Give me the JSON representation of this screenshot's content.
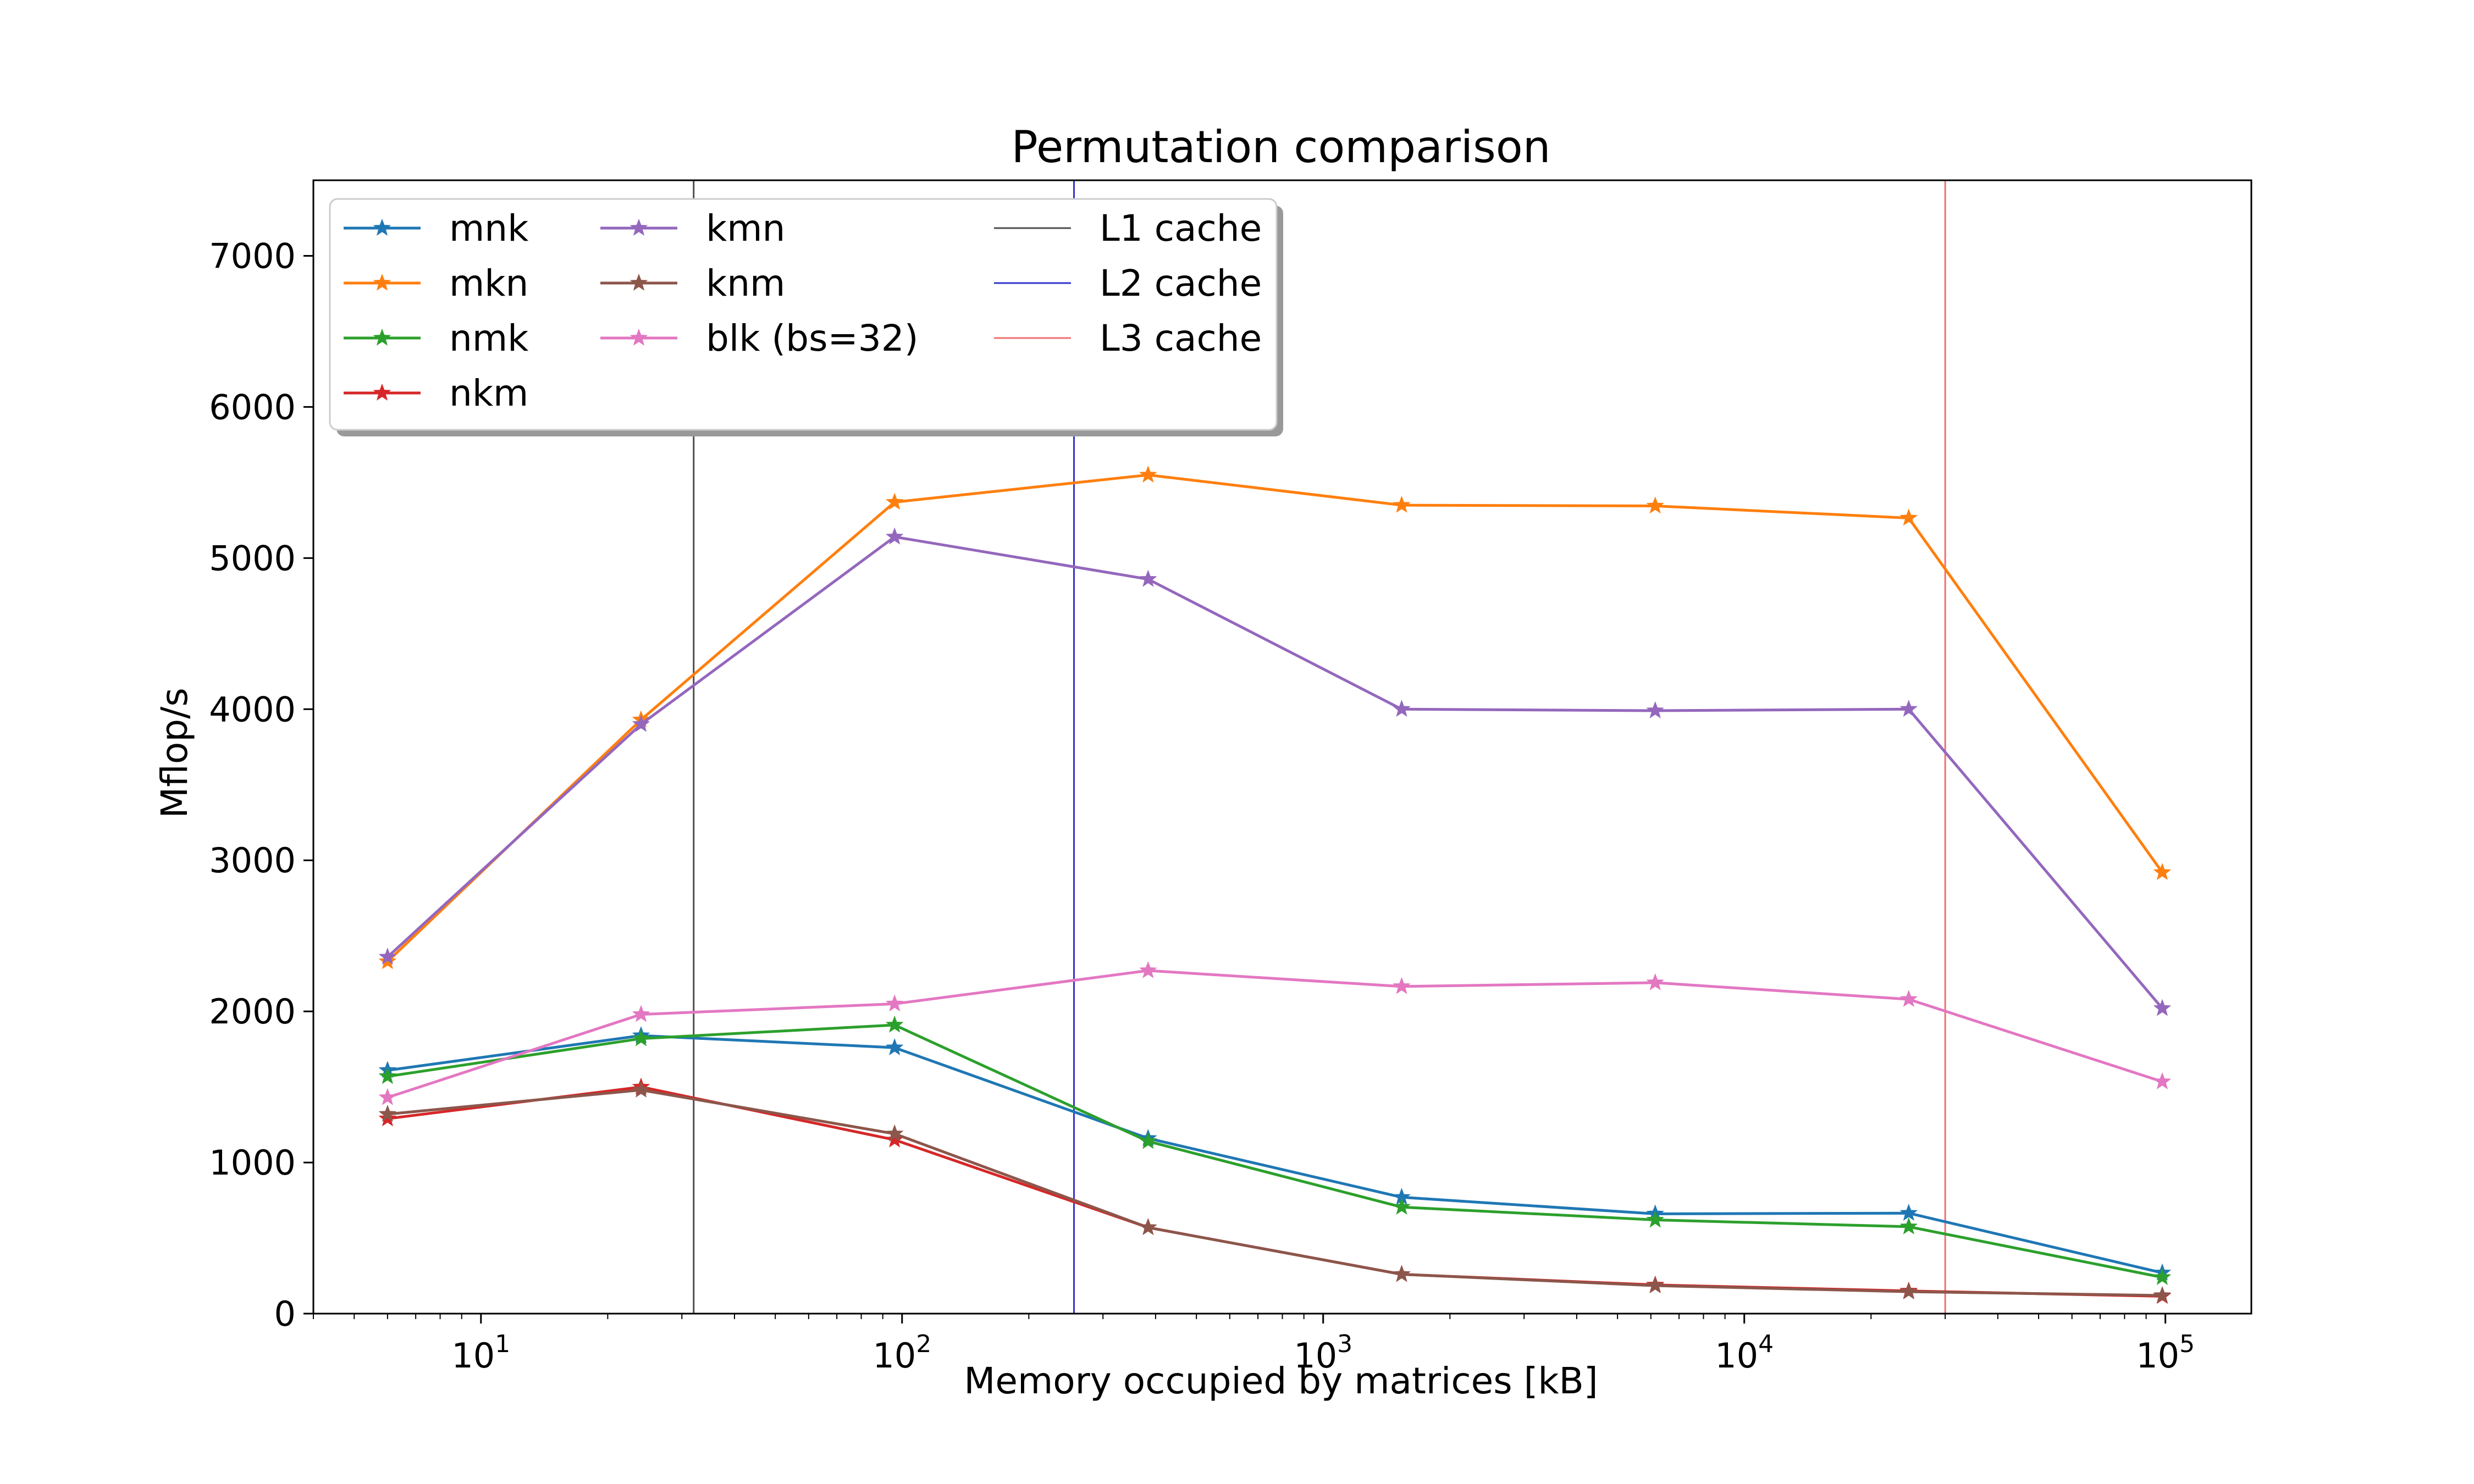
{
  "chart_data": {
    "type": "line",
    "title": "Permutation comparison",
    "xlabel": "Memory occupied by matrices [kB]",
    "ylabel": "Mflop/s",
    "xscale": "log",
    "xlim": [
      4,
      160000
    ],
    "ylim": [
      0,
      7500
    ],
    "grid": false,
    "legend_location": "top-left",
    "legend_columns": 3,
    "x_ticks": [
      {
        "value": 10,
        "base": "10",
        "exp": "1"
      },
      {
        "value": 100,
        "base": "10",
        "exp": "2"
      },
      {
        "value": 1000,
        "base": "10",
        "exp": "3"
      },
      {
        "value": 10000,
        "base": "10",
        "exp": "4"
      },
      {
        "value": 100000,
        "base": "10",
        "exp": "5"
      }
    ],
    "y_ticks": [
      {
        "value": 0,
        "label": "0"
      },
      {
        "value": 1000,
        "label": "1000"
      },
      {
        "value": 2000,
        "label": "2000"
      },
      {
        "value": 3000,
        "label": "3000"
      },
      {
        "value": 4000,
        "label": "4000"
      },
      {
        "value": 5000,
        "label": "5000"
      },
      {
        "value": 6000,
        "label": "6000"
      },
      {
        "value": 7000,
        "label": "7000"
      }
    ],
    "x": [
      6,
      24,
      96,
      384,
      1536,
      6144,
      24576,
      98304
    ],
    "series": [
      {
        "name": "mnk",
        "color": "#1f77b4",
        "values": [
          1610,
          1840,
          1760,
          1160,
          770,
          660,
          665,
          270
        ]
      },
      {
        "name": "mkn",
        "color": "#ff7f0e",
        "values": [
          2330,
          3930,
          5370,
          5550,
          5350,
          5345,
          5265,
          2920
        ]
      },
      {
        "name": "nmk",
        "color": "#2ca02c",
        "values": [
          1570,
          1820,
          1910,
          1140,
          705,
          620,
          575,
          240
        ]
      },
      {
        "name": "nkm",
        "color": "#d62728",
        "values": [
          1290,
          1500,
          1150,
          570,
          260,
          190,
          150,
          115
        ]
      },
      {
        "name": "kmn",
        "color": "#9467bd",
        "values": [
          2360,
          3900,
          5140,
          4860,
          4000,
          3990,
          4000,
          2020
        ]
      },
      {
        "name": "knm",
        "color": "#8c564b",
        "values": [
          1320,
          1480,
          1190,
          570,
          260,
          185,
          145,
          120
        ]
      },
      {
        "name": "blk (bs=32)",
        "color": "#e377c2",
        "values": [
          1430,
          1980,
          2050,
          2270,
          2165,
          2190,
          2080,
          1535
        ]
      }
    ],
    "vlines": [
      {
        "name": "L1 cache",
        "color": "#4d4d4d",
        "x": 32
      },
      {
        "name": "L2 cache",
        "color": "#3333cc",
        "x": 256
      },
      {
        "name": "L3 cache",
        "color": "#f07070",
        "x": 30000
      }
    ]
  }
}
